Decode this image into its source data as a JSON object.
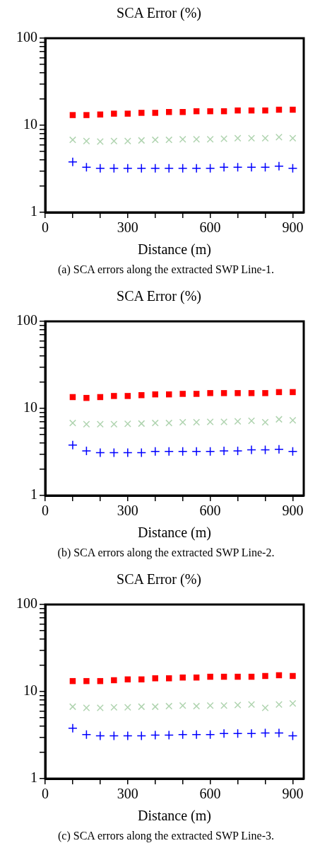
{
  "chart_data": [
    {
      "type": "scatter",
      "title": "SCA Error (%)",
      "xlabel": "Distance (m)",
      "annotations": [
        "(a) SCA errors along the extracted SWP Line-1."
      ],
      "x": [
        100,
        150,
        200,
        250,
        300,
        350,
        400,
        450,
        500,
        550,
        600,
        650,
        700,
        750,
        800,
        850,
        900
      ],
      "series": [
        {
          "color": "#ff0000",
          "marker": "square",
          "values": [
            13.1,
            13.1,
            13.3,
            13.6,
            13.6,
            13.9,
            13.9,
            14.2,
            14.2,
            14.5,
            14.5,
            14.5,
            14.8,
            14.8,
            14.8,
            15.1,
            15.1
          ]
        },
        {
          "color": "#b0d4b0",
          "marker": "x",
          "values": [
            6.8,
            6.6,
            6.5,
            6.6,
            6.6,
            6.7,
            6.8,
            6.8,
            6.9,
            6.9,
            6.9,
            7.0,
            7.1,
            7.1,
            7.1,
            7.3,
            7.1
          ]
        },
        {
          "color": "#0000ff",
          "marker": "cross",
          "values": [
            3.8,
            3.3,
            3.2,
            3.2,
            3.2,
            3.2,
            3.2,
            3.2,
            3.2,
            3.2,
            3.2,
            3.3,
            3.3,
            3.3,
            3.3,
            3.4,
            3.2
          ]
        }
      ],
      "log": "y",
      "xlim": [
        0,
        940
      ],
      "ylim": [
        1,
        100
      ],
      "xticks": [
        0,
        {
          "value": 100,
          "label": null
        },
        {
          "value": 200,
          "label": null
        },
        300,
        {
          "value": 400,
          "label": null
        },
        {
          "value": 500,
          "label": null
        },
        600,
        {
          "value": 700,
          "label": null
        },
        {
          "value": 800,
          "label": null
        },
        900
      ],
      "yticks": [
        1,
        {
          "value": 2,
          "label": null
        },
        {
          "value": 3,
          "label": null
        },
        {
          "value": 4,
          "label": null
        },
        {
          "value": 5,
          "label": null
        },
        {
          "value": 6,
          "label": null
        },
        {
          "value": 7,
          "label": null
        },
        {
          "value": 8,
          "label": null
        },
        {
          "value": 9,
          "label": null
        },
        10,
        {
          "value": 20,
          "label": null
        },
        {
          "value": 30,
          "label": null
        },
        {
          "value": 40,
          "label": null
        },
        {
          "value": 50,
          "label": null
        },
        {
          "value": 60,
          "label": null
        },
        {
          "value": 70,
          "label": null
        },
        {
          "value": 80,
          "label": null
        },
        {
          "value": 90,
          "label": null
        },
        100
      ],
      "grid": false,
      "legend": false
    },
    {
      "type": "scatter",
      "title": "SCA Error (%)",
      "xlabel": "Distance (m)",
      "annotations": [
        "(b) SCA errors along the extracted SWP Line-2."
      ],
      "x": [
        100,
        150,
        200,
        250,
        300,
        350,
        400,
        450,
        500,
        550,
        600,
        650,
        700,
        750,
        800,
        850,
        900
      ],
      "series": [
        {
          "color": "#ff0000",
          "marker": "square",
          "values": [
            13.5,
            13.2,
            13.5,
            13.9,
            13.9,
            14.2,
            14.5,
            14.5,
            14.7,
            14.7,
            15.0,
            15.0,
            15.0,
            15.0,
            15.0,
            15.4,
            15.4
          ]
        },
        {
          "color": "#b0d4b0",
          "marker": "x",
          "values": [
            6.8,
            6.6,
            6.6,
            6.6,
            6.65,
            6.7,
            6.8,
            6.8,
            6.95,
            6.95,
            7.0,
            7.0,
            7.1,
            7.2,
            6.95,
            7.5,
            7.3
          ]
        },
        {
          "color": "#0000ff",
          "marker": "cross",
          "values": [
            3.8,
            3.25,
            3.1,
            3.1,
            3.1,
            3.1,
            3.2,
            3.2,
            3.2,
            3.2,
            3.2,
            3.25,
            3.25,
            3.35,
            3.35,
            3.4,
            3.2
          ]
        }
      ],
      "log": "y",
      "xlim": [
        0,
        940
      ],
      "ylim": [
        1,
        100
      ],
      "xticks": [
        0,
        {
          "value": 100,
          "label": null
        },
        {
          "value": 200,
          "label": null
        },
        300,
        {
          "value": 400,
          "label": null
        },
        {
          "value": 500,
          "label": null
        },
        600,
        {
          "value": 700,
          "label": null
        },
        {
          "value": 800,
          "label": null
        },
        900
      ],
      "yticks": [
        1,
        {
          "value": 2,
          "label": null
        },
        {
          "value": 3,
          "label": null
        },
        {
          "value": 4,
          "label": null
        },
        {
          "value": 5,
          "label": null
        },
        {
          "value": 6,
          "label": null
        },
        {
          "value": 7,
          "label": null
        },
        {
          "value": 8,
          "label": null
        },
        {
          "value": 9,
          "label": null
        },
        10,
        {
          "value": 20,
          "label": null
        },
        {
          "value": 30,
          "label": null
        },
        {
          "value": 40,
          "label": null
        },
        {
          "value": 50,
          "label": null
        },
        {
          "value": 60,
          "label": null
        },
        {
          "value": 70,
          "label": null
        },
        {
          "value": 80,
          "label": null
        },
        {
          "value": 90,
          "label": null
        },
        100
      ],
      "grid": false,
      "legend": false
    },
    {
      "type": "scatter",
      "title": "SCA Error (%)",
      "xlabel": "Distance (m)",
      "annotations": [
        "(c) SCA errors along the extracted SWP Line-3."
      ],
      "x": [
        100,
        150,
        200,
        250,
        300,
        350,
        400,
        450,
        500,
        550,
        600,
        650,
        700,
        750,
        800,
        850,
        900
      ],
      "series": [
        {
          "color": "#ff0000",
          "marker": "square",
          "values": [
            13.2,
            13.2,
            13.2,
            13.5,
            13.8,
            13.8,
            14.2,
            14.2,
            14.5,
            14.5,
            14.8,
            14.8,
            14.8,
            14.8,
            15.1,
            15.4,
            15.1
          ]
        },
        {
          "color": "#b0d4b0",
          "marker": "x",
          "values": [
            6.7,
            6.5,
            6.5,
            6.6,
            6.6,
            6.7,
            6.7,
            6.8,
            6.9,
            6.8,
            6.9,
            6.9,
            7.0,
            7.1,
            6.5,
            7.1,
            7.3
          ]
        },
        {
          "color": "#0000ff",
          "marker": "cross",
          "values": [
            3.8,
            3.2,
            3.1,
            3.1,
            3.1,
            3.1,
            3.16,
            3.16,
            3.2,
            3.2,
            3.2,
            3.3,
            3.3,
            3.3,
            3.35,
            3.35,
            3.1
          ]
        }
      ],
      "log": "y",
      "xlim": [
        0,
        940
      ],
      "ylim": [
        1,
        100
      ],
      "xticks": [
        0,
        {
          "value": 100,
          "label": null
        },
        {
          "value": 200,
          "label": null
        },
        300,
        {
          "value": 400,
          "label": null
        },
        {
          "value": 500,
          "label": null
        },
        600,
        {
          "value": 700,
          "label": null
        },
        {
          "value": 800,
          "label": null
        },
        900
      ],
      "yticks": [
        1,
        {
          "value": 2,
          "label": null
        },
        {
          "value": 3,
          "label": null
        },
        {
          "value": 4,
          "label": null
        },
        {
          "value": 5,
          "label": null
        },
        {
          "value": 6,
          "label": null
        },
        {
          "value": 7,
          "label": null
        },
        {
          "value": 8,
          "label": null
        },
        {
          "value": 9,
          "label": null
        },
        10,
        {
          "value": 20,
          "label": null
        },
        {
          "value": 30,
          "label": null
        },
        {
          "value": 40,
          "label": null
        },
        {
          "value": 50,
          "label": null
        },
        {
          "value": 60,
          "label": null
        },
        {
          "value": 70,
          "label": null
        },
        {
          "value": 80,
          "label": null
        },
        {
          "value": 90,
          "label": null
        },
        100
      ],
      "grid": false,
      "legend": false
    }
  ]
}
